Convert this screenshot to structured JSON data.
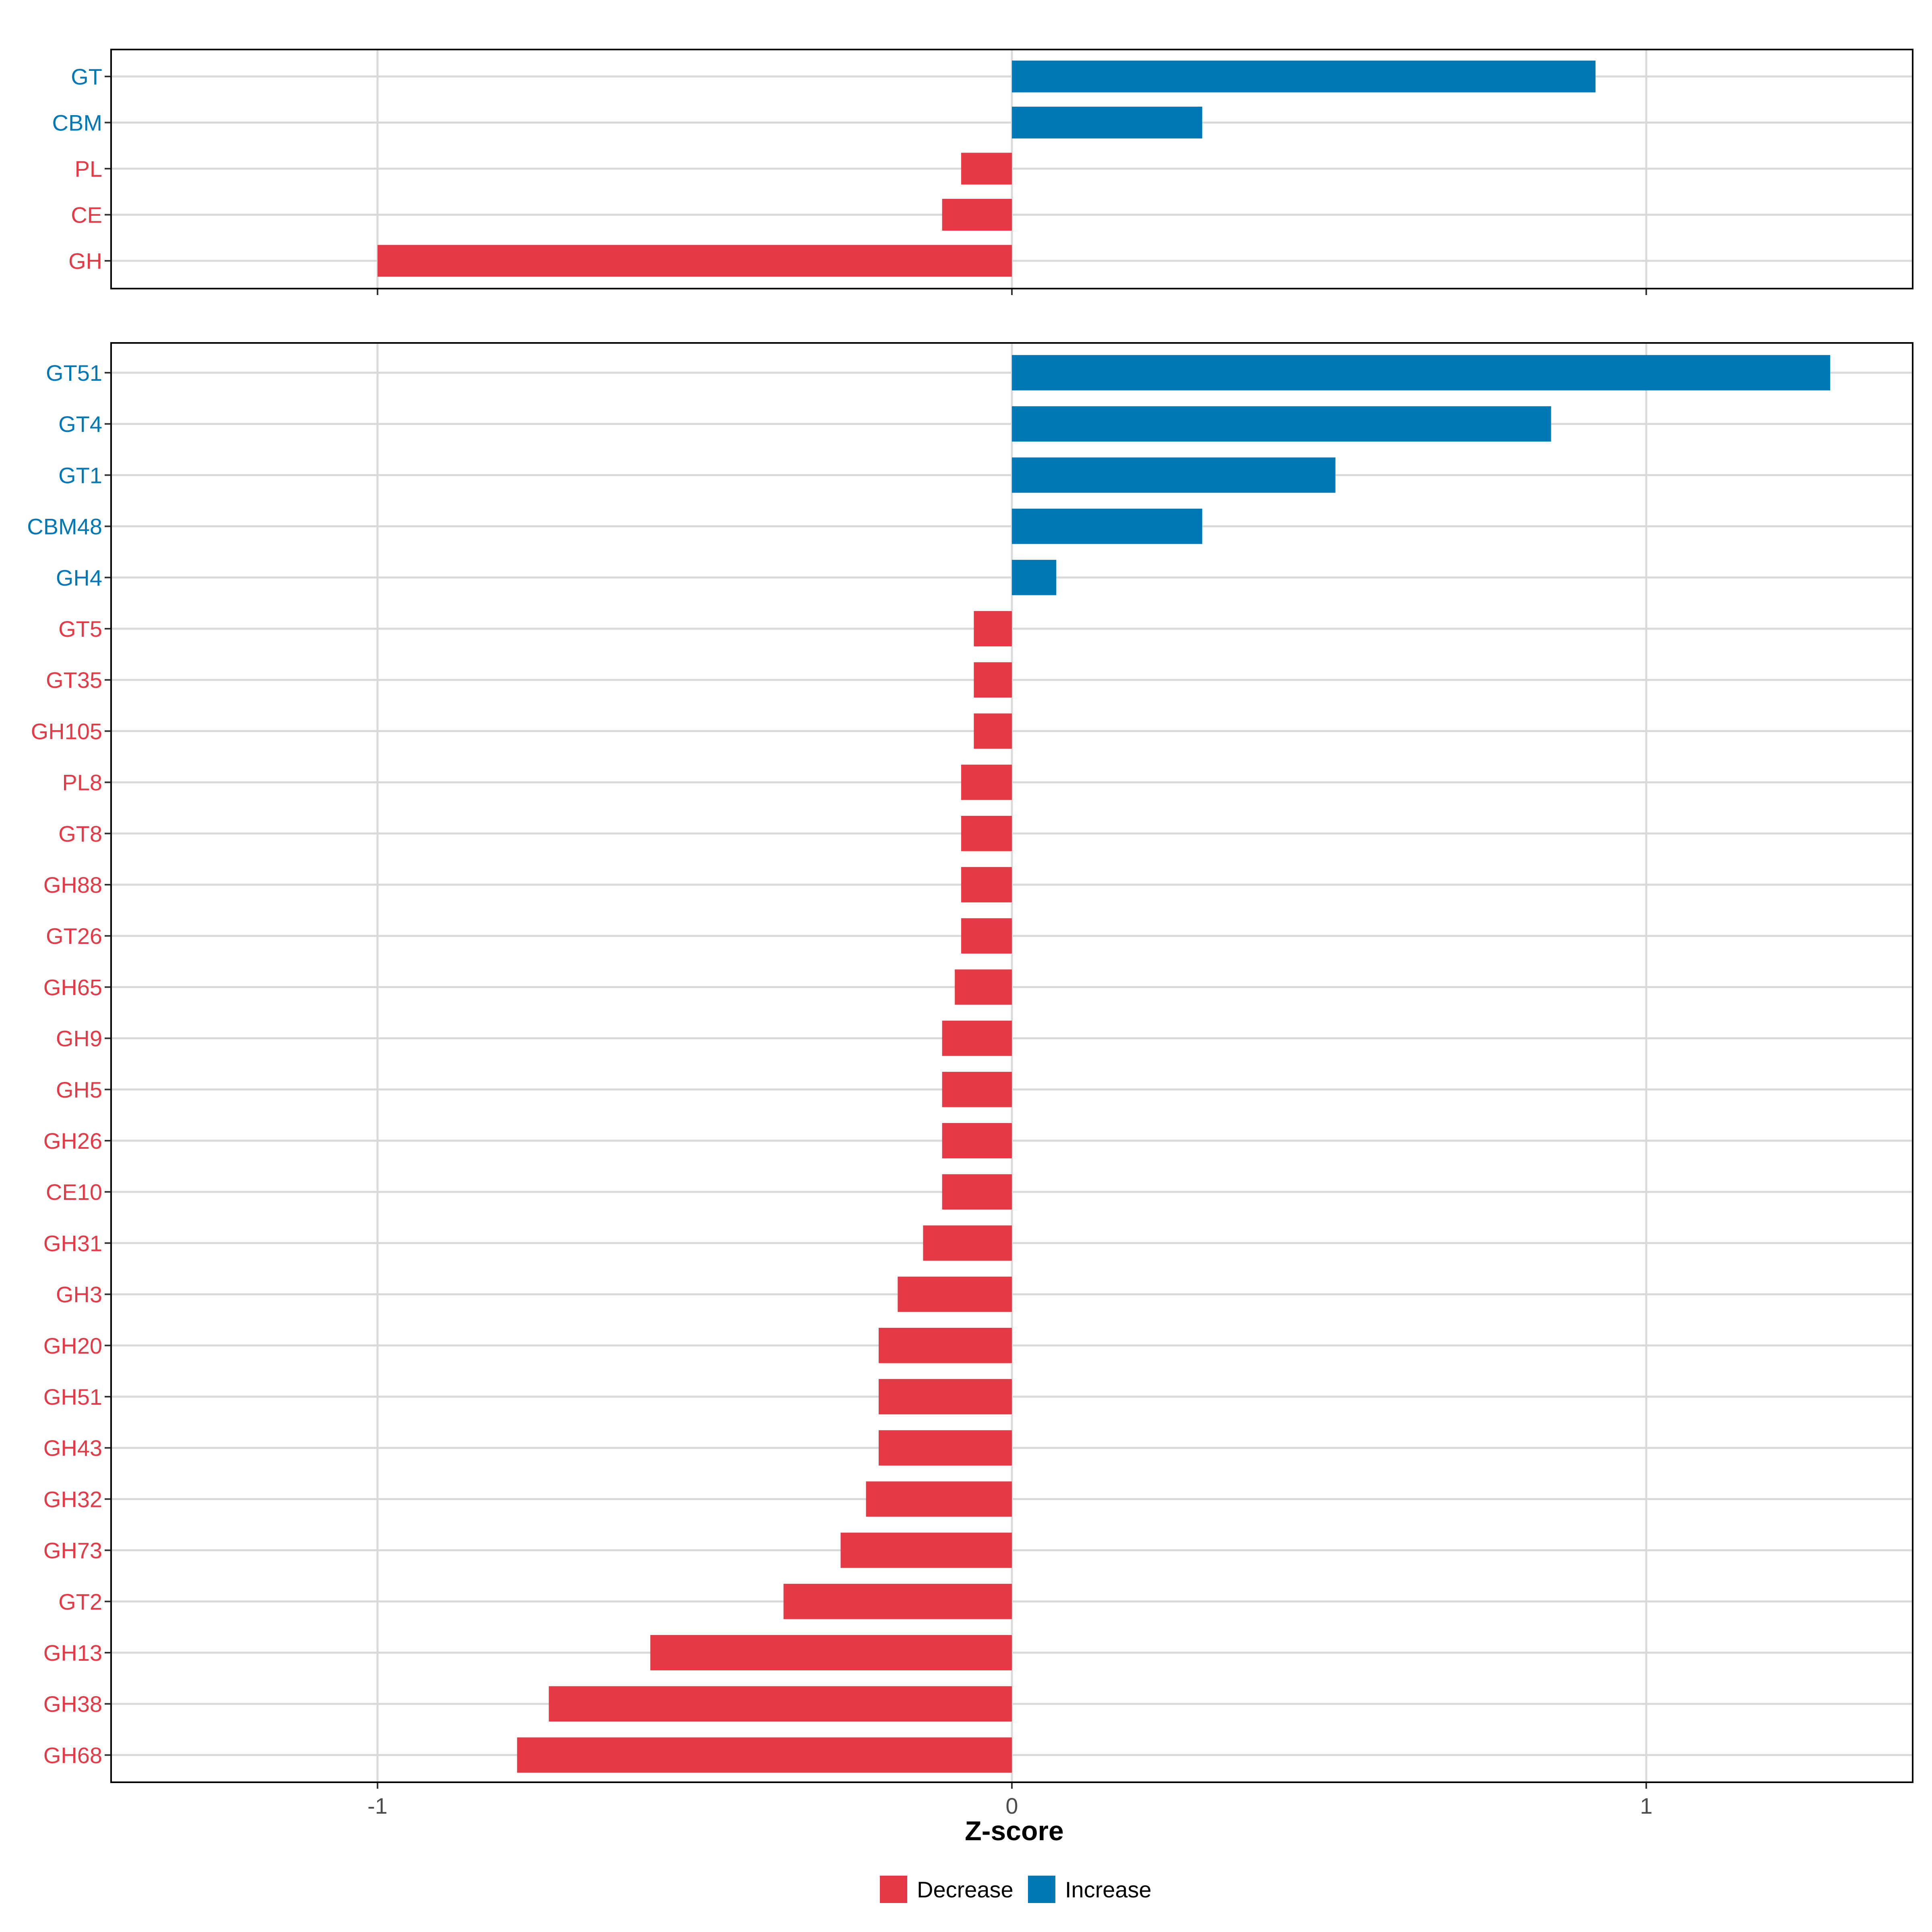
{
  "chart_data": [
    {
      "type": "bar",
      "orientation": "horizontal",
      "panel": "top",
      "categories": [
        "GT",
        "CBM",
        "PL",
        "CE",
        "GH"
      ],
      "values": [
        0.92,
        0.3,
        -0.08,
        -0.11,
        -1.0
      ],
      "direction": [
        "Increase",
        "Increase",
        "Decrease",
        "Decrease",
        "Decrease"
      ],
      "xlim": [
        -1.42,
        1.42
      ],
      "xticks": [
        -1,
        0,
        1
      ],
      "grid": true
    },
    {
      "type": "bar",
      "orientation": "horizontal",
      "panel": "bottom",
      "categories": [
        "GT51",
        "GT4",
        "GT1",
        "CBM48",
        "GH4",
        "GT5",
        "GT35",
        "GH105",
        "PL8",
        "GT8",
        "GH88",
        "GT26",
        "GH65",
        "GH9",
        "GH5",
        "GH26",
        "CE10",
        "GH31",
        "GH3",
        "GH20",
        "GH51",
        "GH43",
        "GH32",
        "GH73",
        "GT2",
        "GH13",
        "GH38",
        "GH68"
      ],
      "values": [
        1.29,
        0.85,
        0.51,
        0.3,
        0.07,
        -0.06,
        -0.06,
        -0.06,
        -0.08,
        -0.08,
        -0.08,
        -0.08,
        -0.09,
        -0.11,
        -0.11,
        -0.11,
        -0.11,
        -0.14,
        -0.18,
        -0.21,
        -0.21,
        -0.21,
        -0.23,
        -0.27,
        -0.36,
        -0.57,
        -0.73,
        -0.78
      ],
      "direction": [
        "Increase",
        "Increase",
        "Increase",
        "Increase",
        "Increase",
        "Decrease",
        "Decrease",
        "Decrease",
        "Decrease",
        "Decrease",
        "Decrease",
        "Decrease",
        "Decrease",
        "Decrease",
        "Decrease",
        "Decrease",
        "Decrease",
        "Decrease",
        "Decrease",
        "Decrease",
        "Decrease",
        "Decrease",
        "Decrease",
        "Decrease",
        "Decrease",
        "Decrease",
        "Decrease",
        "Decrease"
      ],
      "xlim": [
        -1.42,
        1.42
      ],
      "xticks": [
        -1,
        0,
        1
      ],
      "xtick_labels": [
        "-1",
        "0",
        "1"
      ],
      "xlabel": "Z-score",
      "grid": true
    }
  ],
  "legend": {
    "position": "bottom",
    "items": [
      {
        "label": "Decrease",
        "color": "#e63946"
      },
      {
        "label": "Increase",
        "color": "#0077b6"
      }
    ]
  },
  "colors": {
    "Decrease": "#e63946",
    "Increase": "#0077b6",
    "grid": "#d9d9d9",
    "axis": "#000000"
  }
}
